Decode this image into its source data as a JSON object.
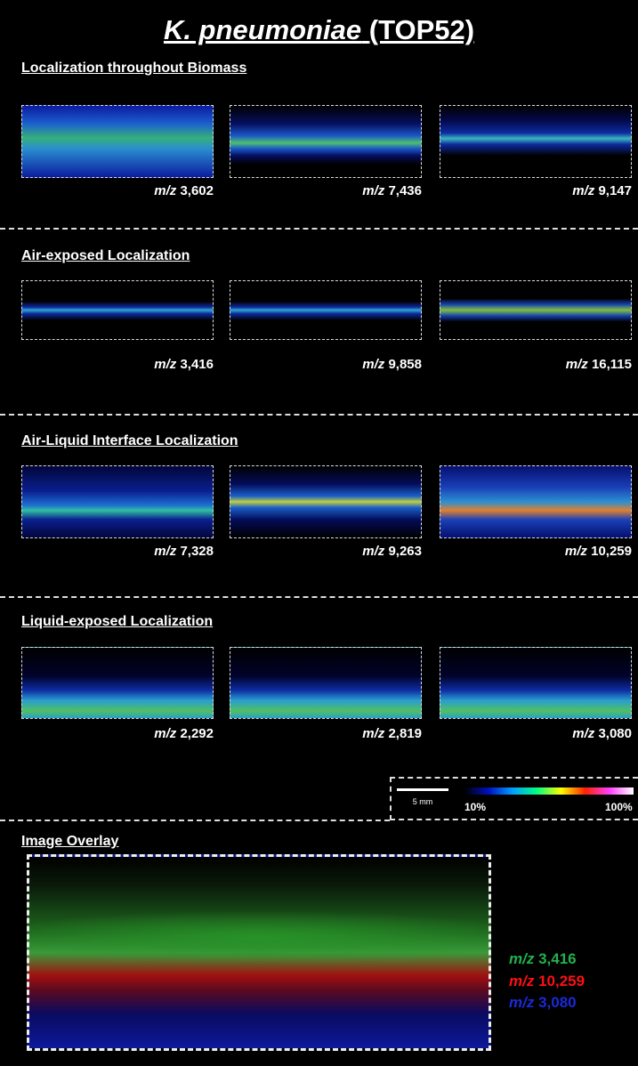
{
  "title": {
    "italic": "K. pneumoniae",
    "rest": "(TOP52)"
  },
  "sections": [
    {
      "heading": "Localization throughout Biomass",
      "images": [
        {
          "unit": "m/z",
          "value": "3,602"
        },
        {
          "unit": "m/z",
          "value": "7,436"
        },
        {
          "unit": "m/z",
          "value": "9,147"
        }
      ]
    },
    {
      "heading": "Air-exposed Localization",
      "images": [
        {
          "unit": "m/z",
          "value": "3,416"
        },
        {
          "unit": "m/z",
          "value": "9,858"
        },
        {
          "unit": "m/z",
          "value": "16,115"
        }
      ]
    },
    {
      "heading": "Air-Liquid Interface Localization",
      "images": [
        {
          "unit": "m/z",
          "value": "7,328"
        },
        {
          "unit": "m/z",
          "value": "9,263"
        },
        {
          "unit": "m/z",
          "value": "10,259"
        }
      ]
    },
    {
      "heading": "Liquid-exposed Localization",
      "images": [
        {
          "unit": "m/z",
          "value": "2,292"
        },
        {
          "unit": "m/z",
          "value": "2,819"
        },
        {
          "unit": "m/z",
          "value": "3,080"
        }
      ]
    }
  ],
  "scale_bar": "5 mm",
  "colorbar": {
    "min": "10%",
    "max": "100%"
  },
  "overlay": {
    "heading": "Image Overlay",
    "legend": [
      {
        "unit": "m/z",
        "value": "3,416"
      },
      {
        "unit": "m/z",
        "value": "10,259"
      },
      {
        "unit": "m/z",
        "value": "3,080"
      }
    ]
  }
}
